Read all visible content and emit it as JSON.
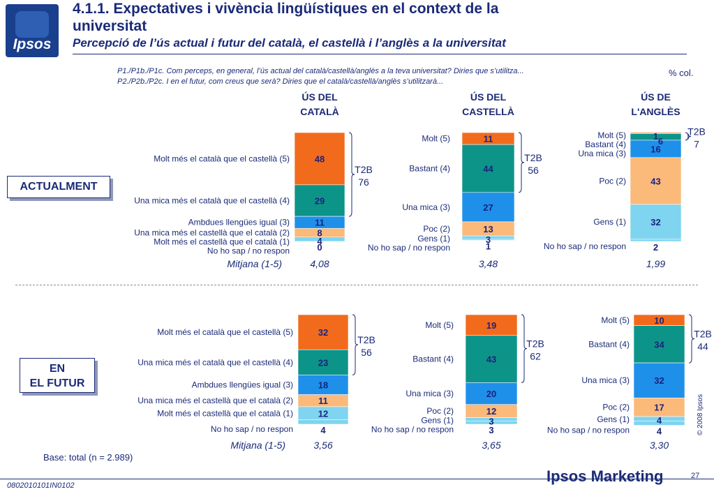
{
  "header": {
    "logo_text": "Ipsos",
    "title_line1": "4.1.1. Expectatives i vivència lingüístiques en el context de la",
    "title_line2": "universitat",
    "subtitle": "Percepció de l’ús actual i futur del català, el castellà i l’anglès a la universitat",
    "question1": "P1./P1b./P1c. Com perceps, en general, l’ús actual del català/castellà/anglès a la teva universitat? Diries que s’utilitza...",
    "question2": "P2./P2b./P2c. I en el futur, com creus que serà? Diries que el català/castellà/anglès s’utilitzarà...",
    "unit": "% col."
  },
  "sections": {
    "current": "ACTUALMENT",
    "future_line1": "EN",
    "future_line2": "EL FUTUR"
  },
  "base": "Base: total (n = 2.989)",
  "copyright": "© 2008 Ipsos",
  "footer": {
    "code": "0802010101IN0102",
    "brand": "Ipsos Marketing",
    "page": "27"
  },
  "colors": {
    "cat5": "#f26b1d",
    "cat4": "#0d9488",
    "cat3": "#1e90ea",
    "cat2": "#fbb97a",
    "cat1": "#7fd4ef",
    "value_text": "#1a237e",
    "label_text": "#1a2a78"
  },
  "chart_data": [
    {
      "type": "bar",
      "stacked": true,
      "period": "ACTUALMENT",
      "column_titles": [
        [
          "ÚS DEL",
          "CATALÀ"
        ],
        [
          "ÚS DEL",
          "CASTELLÀ"
        ],
        [
          "ÚS DE",
          "L'ANGLÈS"
        ]
      ],
      "mean_label": "Mitjana (1-5)",
      "columns": [
        {
          "labels": [
            "Molt més el català que el castellà (5)",
            "Una mica més el català que el castellà (4)",
            "Ambdues llengües igual (3)",
            "Una mica més el castellà que el català (2)",
            "Molt més el castellà que el català (1)",
            "No ho sap / no respon"
          ],
          "values": [
            48,
            29,
            11,
            8,
            4,
            0
          ],
          "t2b_label": "T2B",
          "t2b_value": "76",
          "mean": "4,08"
        },
        {
          "labels": [
            "Molt (5)",
            "Bastant (4)",
            "Una mica (3)",
            "Poc (2)",
            "Gens (1)",
            "No ho sap / no respon"
          ],
          "values": [
            11,
            44,
            27,
            13,
            3,
            1
          ],
          "t2b_label": "T2B",
          "t2b_value": "56",
          "mean": "3,48"
        },
        {
          "labels": [
            "Molt (5)",
            "Bastant (4)",
            "Una mica (3)",
            "Poc (2)",
            "Gens (1)",
            "No ho sap / no respon"
          ],
          "values": [
            1,
            6,
            16,
            43,
            32,
            2
          ],
          "t2b_label": "T2B",
          "t2b_value": "7",
          "mean": "1,99"
        }
      ]
    },
    {
      "type": "bar",
      "stacked": true,
      "period": "EN EL FUTUR",
      "mean_label": "Mitjana (1-5)",
      "columns": [
        {
          "labels": [
            "Molt més el català que el castellà (5)",
            "Una mica més el català que el castellà (4)",
            "Ambdues llengües igual (3)",
            "Una mica més el castellà que el català (2)",
            "Molt més el castellà que el català (1)",
            "No ho sap / no respon"
          ],
          "values": [
            32,
            23,
            18,
            11,
            12,
            4
          ],
          "t2b_label": "T2B",
          "t2b_value": "56",
          "mean": "3,56"
        },
        {
          "labels": [
            "Molt (5)",
            "Bastant (4)",
            "Una mica (3)",
            "Poc (2)",
            "Gens (1)",
            "No ho sap / no respon"
          ],
          "values": [
            19,
            43,
            20,
            12,
            3,
            3
          ],
          "t2b_label": "T2B",
          "t2b_value": "62",
          "mean": "3,65"
        },
        {
          "labels": [
            "Molt (5)",
            "Bastant (4)",
            "Una mica (3)",
            "Poc (2)",
            "Gens (1)",
            "No ho sap / no respon"
          ],
          "values": [
            10,
            34,
            32,
            17,
            4,
            4
          ],
          "t2b_label": "T2B",
          "t2b_value": "44",
          "mean": "3,30"
        }
      ]
    }
  ]
}
